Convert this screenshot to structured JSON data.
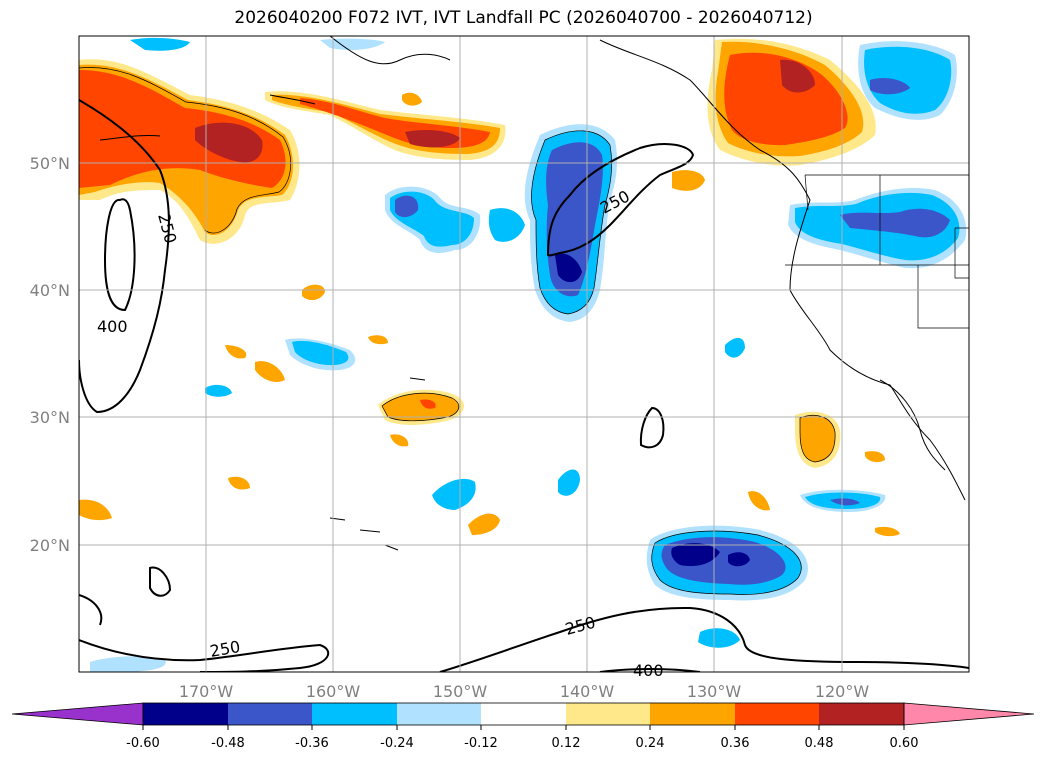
{
  "title": "2026040200 F072 IVT, IVT Landfall PC (2026040700 - 2026040712)",
  "map": {
    "lon_ticks": [
      "170°W",
      "160°W",
      "150°W",
      "140°W",
      "130°W",
      "120°W"
    ],
    "lat_ticks": [
      "50°N",
      "40°N",
      "30°N",
      "20°N"
    ],
    "extent": {
      "lon": [
        -180,
        -110
      ],
      "lat": [
        10,
        60
      ]
    },
    "grid": true,
    "contour_labels": [
      "250",
      "400",
      "250",
      "250",
      "400"
    ]
  },
  "colorbar": {
    "ticks": [
      "-0.60",
      "-0.48",
      "-0.36",
      "-0.24",
      "-0.12",
      "0.12",
      "0.24",
      "0.36",
      "0.48",
      "0.60"
    ],
    "colors": [
      "#9932cc",
      "#00008b",
      "#3a56c8",
      "#00bfff",
      "#b0e2ff",
      "#ffffff",
      "#ffe88a",
      "#ffa500",
      "#ff4500",
      "#b22222",
      "#ff88aa"
    ]
  }
}
